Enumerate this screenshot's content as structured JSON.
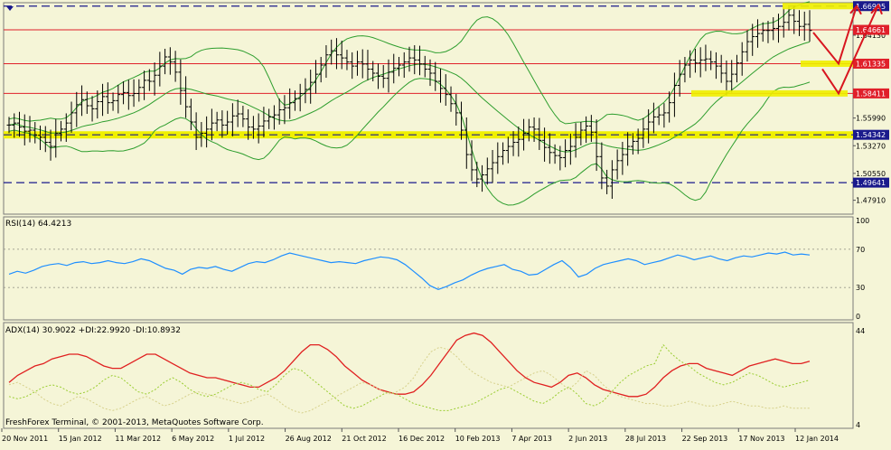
{
  "window": {
    "credit": "FreshForex Terminal, © 2001-2013, MetaQuotes Software Corp."
  },
  "colors": {
    "background": "#f5f5d7",
    "bars": "#000000",
    "bands": "#2e9e2e",
    "level_red": "#e0202a",
    "level_navy": "#1a1a8c",
    "zone_yellow": "#f0f000",
    "rsi_line": "#1f8fff",
    "adx_line": "#e02020",
    "di_plus": "#9acd32",
    "di_minus": "#d6d08a",
    "arrows": "#d8151f"
  },
  "chart_data": [
    {
      "type": "ohlc",
      "panel": "price",
      "ylim": [
        1.4663,
        1.6724
      ],
      "y_ticks": [
        "1.66995",
        "1.64661",
        "1.64130",
        "1.61335",
        "1.58411",
        "1.55990",
        "1.54342",
        "1.53270",
        "1.50550",
        "1.49641",
        "1.47910"
      ],
      "x_tick_labels": [
        "20 Nov 2011",
        "15 Jan 2012",
        "11 Mar 2012",
        "6 May 2012",
        "1 Jul 2012",
        "26 Aug 2012",
        "21 Oct 2012",
        "16 Dec 2012",
        "10 Feb 2013",
        "7 Apr 2013",
        "2 Jun 2013",
        "28 Jul 2013",
        "22 Sep 2013",
        "17 Nov 2013",
        "12 Jan 2014"
      ],
      "levels": [
        {
          "label": "1.66995",
          "value": 1.66995,
          "style": "navy-dashed"
        },
        {
          "label": "1.64661",
          "value": 1.64661,
          "style": "red"
        },
        {
          "label": "1.61335",
          "value": 1.61335,
          "style": "red"
        },
        {
          "label": "1.58411",
          "value": 1.58411,
          "style": "red"
        },
        {
          "label": "1.54342",
          "value": 1.54342,
          "style": "navy-dashed-yellow"
        },
        {
          "label": "1.49641",
          "value": 1.49641,
          "style": "navy-dashed"
        }
      ],
      "closes": [
        1.553,
        1.555,
        1.551,
        1.547,
        1.548,
        1.543,
        1.541,
        1.536,
        1.532,
        1.545,
        1.549,
        1.555,
        1.565,
        1.573,
        1.578,
        1.572,
        1.569,
        1.576,
        1.581,
        1.575,
        1.577,
        1.583,
        1.585,
        1.582,
        1.584,
        1.59,
        1.597,
        1.596,
        1.602,
        1.611,
        1.62,
        1.615,
        1.605,
        1.587,
        1.571,
        1.556,
        1.541,
        1.545,
        1.549,
        1.555,
        1.558,
        1.553,
        1.556,
        1.562,
        1.564,
        1.559,
        1.551,
        1.549,
        1.552,
        1.557,
        1.561,
        1.563,
        1.568,
        1.57,
        1.575,
        1.579,
        1.584,
        1.588,
        1.595,
        1.603,
        1.612,
        1.622,
        1.626,
        1.622,
        1.619,
        1.615,
        1.611,
        1.615,
        1.613,
        1.608,
        1.604,
        1.601,
        1.599,
        1.605,
        1.609,
        1.612,
        1.615,
        1.619,
        1.617,
        1.613,
        1.608,
        1.604,
        1.596,
        1.589,
        1.583,
        1.574,
        1.565,
        1.548,
        1.524,
        1.509,
        1.5,
        1.504,
        1.51,
        1.516,
        1.522,
        1.528,
        1.532,
        1.536,
        1.539,
        1.545,
        1.551,
        1.549,
        1.538,
        1.531,
        1.526,
        1.523,
        1.521,
        1.528,
        1.532,
        1.541,
        1.548,
        1.552,
        1.546,
        1.522,
        1.501,
        1.493,
        1.509,
        1.518,
        1.524,
        1.532,
        1.537,
        1.54,
        1.549,
        1.556,
        1.561,
        1.563,
        1.565,
        1.575,
        1.592,
        1.603,
        1.612,
        1.617,
        1.614,
        1.617,
        1.618,
        1.615,
        1.611,
        1.604,
        1.596,
        1.603,
        1.614,
        1.625,
        1.635,
        1.64,
        1.643,
        1.646,
        1.646,
        1.648,
        1.65,
        1.654,
        1.661,
        1.655,
        1.65,
        1.652,
        1.646
      ],
      "bands_period": 20,
      "bands_deviations": 2
    },
    {
      "type": "line",
      "panel": "rsi",
      "label": "RSI(14) 64.4213",
      "ylim": [
        0,
        100
      ],
      "y_ticks": [
        "100",
        "70",
        "30",
        "0"
      ],
      "levels": [
        70,
        30
      ],
      "values": [
        44,
        47,
        45,
        48,
        52,
        54,
        55,
        53,
        56,
        57,
        55,
        56,
        58,
        56,
        55,
        57,
        60,
        58,
        54,
        50,
        48,
        44,
        49,
        51,
        50,
        52,
        49,
        47,
        51,
        55,
        57,
        56,
        59,
        63,
        66,
        64,
        62,
        60,
        58,
        56,
        57,
        56,
        55,
        58,
        60,
        62,
        61,
        59,
        54,
        47,
        40,
        32,
        28,
        31,
        35,
        38,
        43,
        47,
        50,
        52,
        54,
        49,
        47,
        43,
        44,
        49,
        54,
        58,
        51,
        41,
        44,
        50,
        54,
        56,
        58,
        60,
        58,
        54,
        56,
        58,
        61,
        64,
        62,
        59,
        61,
        63,
        60,
        58,
        61,
        63,
        62,
        64,
        66,
        65,
        67,
        64,
        65,
        64
      ]
    },
    {
      "type": "line",
      "panel": "adx",
      "label": "ADX(14) 30.9022 +DI:22.9920 -DI:10.8932",
      "ylim": [
        4,
        44
      ],
      "y_ticks": [
        "44",
        "4"
      ],
      "series": [
        {
          "name": "ADX(14)",
          "values": [
            22,
            25,
            27,
            29,
            30,
            32,
            33,
            34,
            34,
            33,
            31,
            29,
            28,
            28,
            30,
            32,
            34,
            34,
            32,
            30,
            28,
            26,
            25,
            24,
            24,
            23,
            22,
            21,
            20,
            20,
            22,
            24,
            27,
            31,
            35,
            38,
            38,
            36,
            33,
            29,
            26,
            23,
            21,
            19,
            18,
            17,
            17,
            18,
            21,
            25,
            30,
            35,
            40,
            42,
            43,
            42,
            39,
            35,
            31,
            27,
            24,
            22,
            21,
            20,
            22,
            25,
            26,
            24,
            21,
            19,
            18,
            17,
            16,
            16,
            17,
            20,
            24,
            27,
            29,
            30,
            30,
            28,
            27,
            26,
            25,
            27,
            29,
            30,
            31,
            32,
            31,
            30,
            30,
            31
          ]
        },
        {
          "name": "+DI",
          "values": [
            16,
            15,
            16,
            18,
            20,
            21,
            20,
            18,
            17,
            18,
            20,
            23,
            25,
            24,
            21,
            18,
            17,
            19,
            22,
            24,
            22,
            19,
            17,
            16,
            17,
            19,
            21,
            22,
            21,
            19,
            18,
            21,
            25,
            28,
            27,
            24,
            21,
            18,
            15,
            12,
            11,
            12,
            14,
            16,
            18,
            17,
            15,
            13,
            12,
            11,
            10,
            10,
            11,
            12,
            13,
            15,
            17,
            19,
            20,
            18,
            16,
            14,
            13,
            15,
            18,
            20,
            17,
            13,
            12,
            14,
            18,
            22,
            25,
            27,
            29,
            30,
            38,
            34,
            31,
            29,
            26,
            24,
            22,
            21,
            22,
            24,
            26,
            25,
            23,
            21,
            20,
            21,
            22,
            23
          ]
        },
        {
          "name": "-DI",
          "values": [
            21,
            22,
            20,
            18,
            15,
            13,
            12,
            14,
            16,
            15,
            13,
            11,
            10,
            11,
            13,
            15,
            16,
            14,
            12,
            13,
            15,
            17,
            18,
            17,
            16,
            15,
            14,
            13,
            14,
            16,
            17,
            15,
            12,
            10,
            9,
            10,
            12,
            14,
            16,
            18,
            20,
            22,
            21,
            19,
            17,
            18,
            20,
            24,
            30,
            35,
            37,
            36,
            33,
            29,
            26,
            24,
            22,
            21,
            20,
            22,
            24,
            26,
            27,
            25,
            22,
            19,
            22,
            27,
            25,
            21,
            18,
            16,
            15,
            14,
            13,
            13,
            12,
            12,
            13,
            14,
            13,
            12,
            12,
            13,
            14,
            13,
            12,
            12,
            11,
            11,
            12,
            11,
            11,
            11
          ]
        }
      ]
    }
  ]
}
